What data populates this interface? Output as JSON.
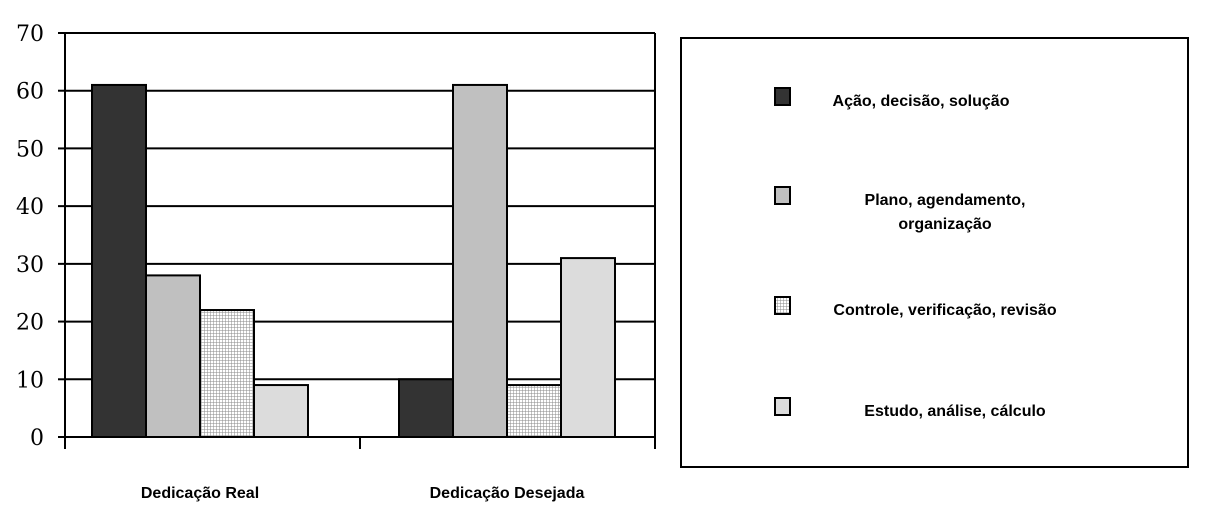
{
  "chart_data": {
    "type": "bar",
    "categories": [
      "Dedicação Real",
      "Dedicação Desejada"
    ],
    "series": [
      {
        "name": "Ação, decisão, solução",
        "values": [
          61,
          10
        ],
        "color": "#333333",
        "pattern": "solid"
      },
      {
        "name": "Plano, agendamento, organização",
        "values": [
          28,
          61
        ],
        "color": "#c0c0c0",
        "pattern": "solid"
      },
      {
        "name": "Controle, verificação, revisão",
        "values": [
          22,
          9
        ],
        "color": "#e8e8e8",
        "pattern": "grid"
      },
      {
        "name": "Estudo, análise, cálculo",
        "values": [
          9,
          31
        ],
        "color": "#dcdcdc",
        "pattern": "solid"
      }
    ],
    "ylim": [
      0,
      70
    ],
    "yticks": [
      0,
      10,
      20,
      30,
      40,
      50,
      60,
      70
    ],
    "grid": true,
    "legend_position": "right"
  }
}
